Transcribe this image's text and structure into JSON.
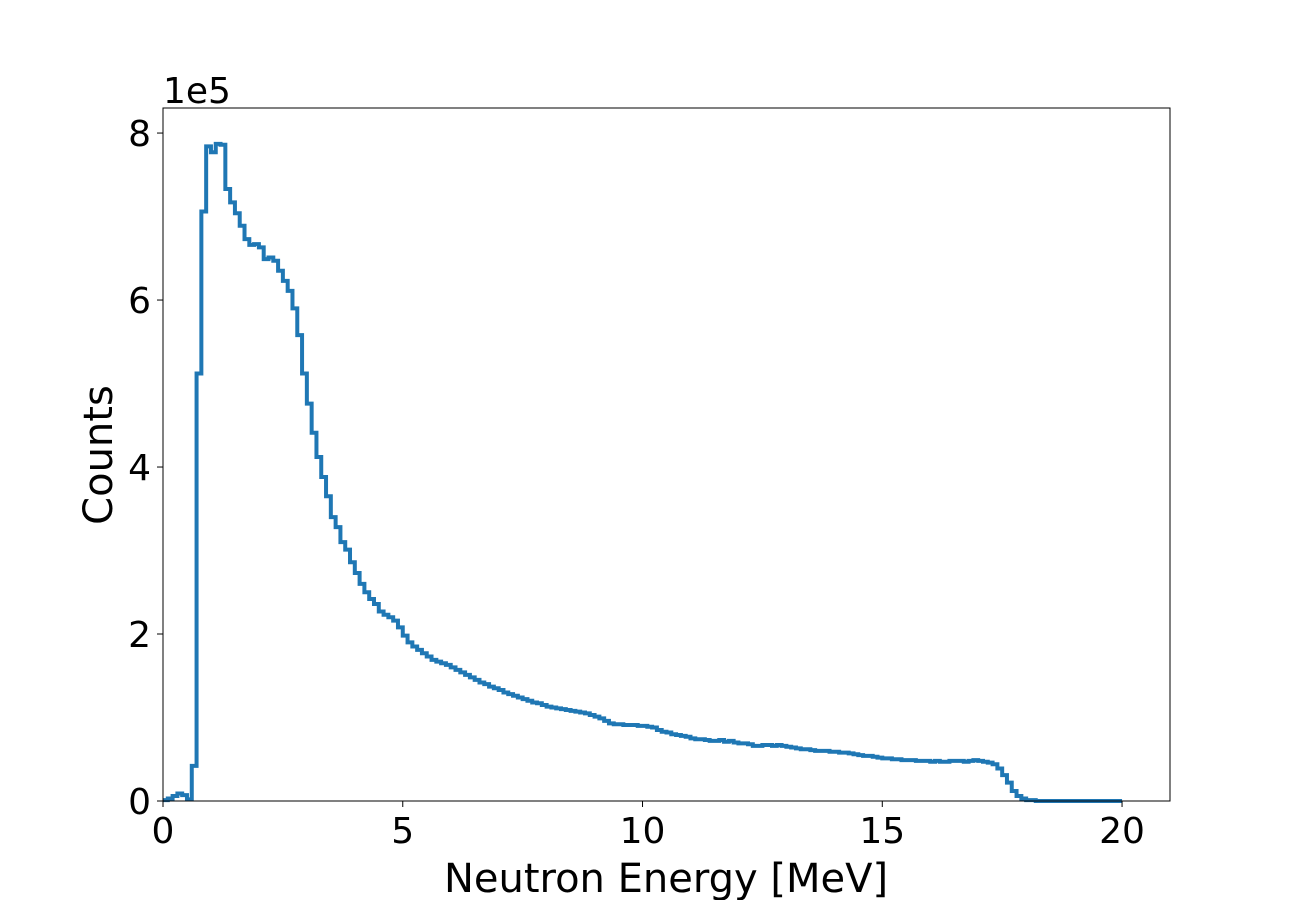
{
  "chart_data": {
    "type": "line",
    "drawstyle": "steps-post",
    "xlabel": "Neutron Energy [MeV]",
    "ylabel": "Counts",
    "y_offset_label": "1e5",
    "xlim": [
      0,
      21
    ],
    "ylim": [
      0,
      8.3
    ],
    "y_scale": 100000,
    "x_ticks": [
      0,
      5,
      10,
      15,
      20
    ],
    "x_tick_labels": [
      "0",
      "5",
      "10",
      "15",
      "20"
    ],
    "y_ticks": [
      0,
      2,
      4,
      6,
      8
    ],
    "y_tick_labels": [
      "0",
      "2",
      "4",
      "6",
      "8"
    ],
    "grid": false,
    "legend": "none",
    "line_color": "#1f77b4",
    "series": [
      {
        "x_start": 0,
        "x_end": 20,
        "bin_width": 0.1,
        "values": [
          0.01,
          0.03,
          0.06,
          0.09,
          0.07,
          0.02,
          0.42,
          5.12,
          7.06,
          7.84,
          7.77,
          7.87,
          7.86,
          7.33,
          7.17,
          7.04,
          6.89,
          6.73,
          6.66,
          6.67,
          6.63,
          6.49,
          6.51,
          6.47,
          6.35,
          6.23,
          6.11,
          5.9,
          5.58,
          5.12,
          4.76,
          4.41,
          4.12,
          3.88,
          3.65,
          3.4,
          3.28,
          3.1,
          3.01,
          2.86,
          2.73,
          2.6,
          2.5,
          2.42,
          2.36,
          2.27,
          2.23,
          2.2,
          2.16,
          2.08,
          1.98,
          1.9,
          1.85,
          1.81,
          1.77,
          1.73,
          1.69,
          1.67,
          1.65,
          1.63,
          1.6,
          1.57,
          1.54,
          1.51,
          1.48,
          1.45,
          1.42,
          1.4,
          1.37,
          1.35,
          1.33,
          1.3,
          1.28,
          1.26,
          1.24,
          1.22,
          1.2,
          1.18,
          1.17,
          1.15,
          1.13,
          1.12,
          1.11,
          1.1,
          1.09,
          1.08,
          1.07,
          1.06,
          1.05,
          1.03,
          1.01,
          0.99,
          0.96,
          0.93,
          0.92,
          0.92,
          0.91,
          0.91,
          0.91,
          0.9,
          0.9,
          0.89,
          0.88,
          0.85,
          0.83,
          0.82,
          0.8,
          0.79,
          0.78,
          0.77,
          0.75,
          0.74,
          0.74,
          0.73,
          0.72,
          0.72,
          0.73,
          0.71,
          0.72,
          0.7,
          0.69,
          0.69,
          0.68,
          0.66,
          0.66,
          0.67,
          0.67,
          0.66,
          0.67,
          0.66,
          0.65,
          0.64,
          0.63,
          0.62,
          0.62,
          0.61,
          0.6,
          0.6,
          0.6,
          0.59,
          0.59,
          0.58,
          0.58,
          0.57,
          0.56,
          0.55,
          0.54,
          0.54,
          0.53,
          0.52,
          0.51,
          0.51,
          0.5,
          0.5,
          0.49,
          0.49,
          0.49,
          0.48,
          0.48,
          0.48,
          0.47,
          0.48,
          0.47,
          0.47,
          0.48,
          0.48,
          0.48,
          0.47,
          0.48,
          0.49,
          0.48,
          0.47,
          0.46,
          0.44,
          0.39,
          0.31,
          0.22,
          0.12,
          0.06,
          0.03,
          0.01,
          0.01,
          0.0,
          0.0,
          0.0,
          0.0,
          0.0,
          0.0,
          0.0,
          0.0,
          0.0,
          0.0,
          0.0,
          0.0,
          0.0,
          0.0,
          0.0,
          0.0,
          0.0,
          0.0
        ]
      }
    ]
  }
}
